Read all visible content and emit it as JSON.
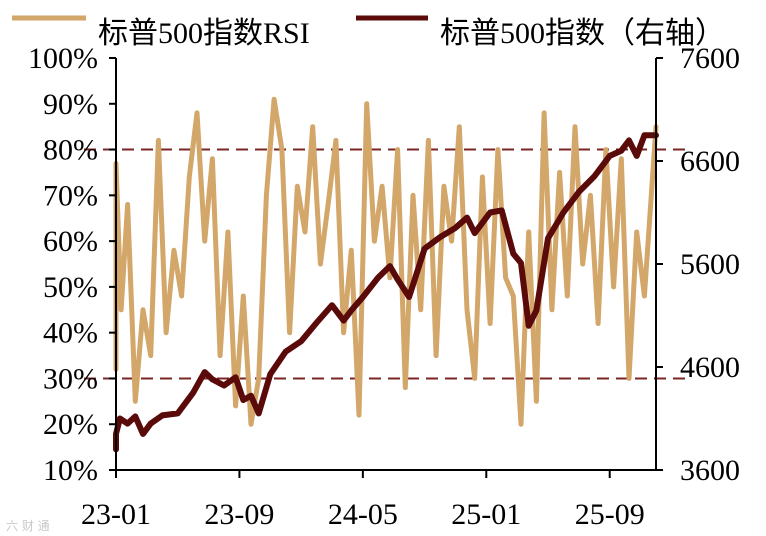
{
  "legend": {
    "rsi_label": "标普500指数RSI",
    "index_label": "标普500指数（右轴）"
  },
  "watermark": "六 财 通",
  "chart_data": {
    "type": "line",
    "x_ticks": [
      "23-01",
      "23-09",
      "24-05",
      "25-01",
      "25-09"
    ],
    "left_axis": {
      "ticks": [
        "100%",
        "90%",
        "80%",
        "70%",
        "60%",
        "50%",
        "40%",
        "30%",
        "20%",
        "10%"
      ],
      "range": [
        10,
        100
      ]
    },
    "right_axis": {
      "ticks": [
        "7600",
        "6600",
        "5600",
        "4600",
        "3600"
      ],
      "range": [
        3600,
        7600
      ]
    },
    "reference_lines": [
      {
        "axis": "left",
        "value": 80,
        "style": "dashed"
      },
      {
        "axis": "left",
        "value": 30,
        "style": "dashed"
      }
    ],
    "colors": {
      "rsi": "#d3a66a",
      "index": "#5b0a0a",
      "reference": "#7a2424",
      "axis": "#000000"
    },
    "series": [
      {
        "name": "标普500指数RSI",
        "axis": "left",
        "x": [
          "22-12",
          "23-01",
          "23-01",
          "23-01",
          "23-02",
          "23-02",
          "23-03",
          "23-03",
          "23-04",
          "23-04",
          "23-05",
          "23-05",
          "23-06",
          "23-06",
          "23-07",
          "23-07",
          "23-08",
          "23-08",
          "23-09",
          "23-09",
          "23-10",
          "23-10",
          "23-11",
          "23-11",
          "23-12",
          "23-12",
          "24-01",
          "24-01",
          "24-02",
          "24-02",
          "24-03",
          "24-03",
          "24-04",
          "24-04",
          "24-05",
          "24-05",
          "24-06",
          "24-06",
          "24-07",
          "24-07",
          "24-08",
          "24-08",
          "24-09",
          "24-09",
          "24-10",
          "24-10",
          "24-11",
          "24-11",
          "24-12",
          "24-12",
          "25-01",
          "25-01",
          "25-02",
          "25-02",
          "25-03",
          "25-03",
          "25-04",
          "25-04",
          "25-05",
          "25-05",
          "25-06",
          "25-06",
          "25-07",
          "25-07",
          "25-08",
          "25-08",
          "25-09",
          "25-09",
          "25-10",
          "25-10",
          "25-11",
          "25-11",
          "25-12"
        ],
        "values": [
          32,
          60,
          77,
          45,
          68,
          25,
          45,
          35,
          82,
          40,
          58,
          48,
          74,
          88,
          60,
          78,
          35,
          62,
          24,
          48,
          20,
          30,
          70,
          91,
          80,
          40,
          72,
          62,
          85,
          55,
          68,
          82,
          40,
          58,
          22,
          90,
          60,
          72,
          52,
          80,
          28,
          70,
          45,
          82,
          35,
          72,
          60,
          85,
          45,
          30,
          74,
          42,
          80,
          52,
          48,
          20,
          62,
          25,
          88,
          45,
          75,
          48,
          85,
          55,
          70,
          42,
          80,
          50,
          78,
          30,
          62,
          48,
          85
        ]
      },
      {
        "name": "标普500指数（右轴）",
        "axis": "right",
        "x": [
          "22-12",
          "23-01",
          "23-01",
          "23-02",
          "23-02",
          "23-03",
          "23-03",
          "23-04",
          "23-05",
          "23-06",
          "23-07",
          "23-07",
          "23-08",
          "23-09",
          "23-09",
          "23-10",
          "23-10",
          "23-11",
          "23-12",
          "24-01",
          "24-02",
          "24-03",
          "24-04",
          "24-04",
          "24-05",
          "24-06",
          "24-07",
          "24-07",
          "24-08",
          "24-09",
          "24-10",
          "24-11",
          "24-12",
          "24-12",
          "25-01",
          "25-01",
          "25-02",
          "25-03",
          "25-03",
          "25-04",
          "25-04",
          "25-05",
          "25-06",
          "25-07",
          "25-08",
          "25-09",
          "25-10",
          "25-10",
          "25-11",
          "25-11",
          "25-12"
        ],
        "values": [
          3800,
          3950,
          4100,
          4050,
          4120,
          3950,
          4050,
          4130,
          4150,
          4350,
          4550,
          4480,
          4420,
          4500,
          4280,
          4320,
          4150,
          4530,
          4750,
          4850,
          5030,
          5200,
          5050,
          5150,
          5280,
          5470,
          5580,
          5450,
          5280,
          5750,
          5860,
          5950,
          6050,
          5900,
          6000,
          6100,
          6120,
          5700,
          5610,
          5000,
          5150,
          5850,
          6100,
          6300,
          6450,
          6650,
          6700,
          6800,
          6650,
          6850,
          6850
        ]
      }
    ]
  }
}
